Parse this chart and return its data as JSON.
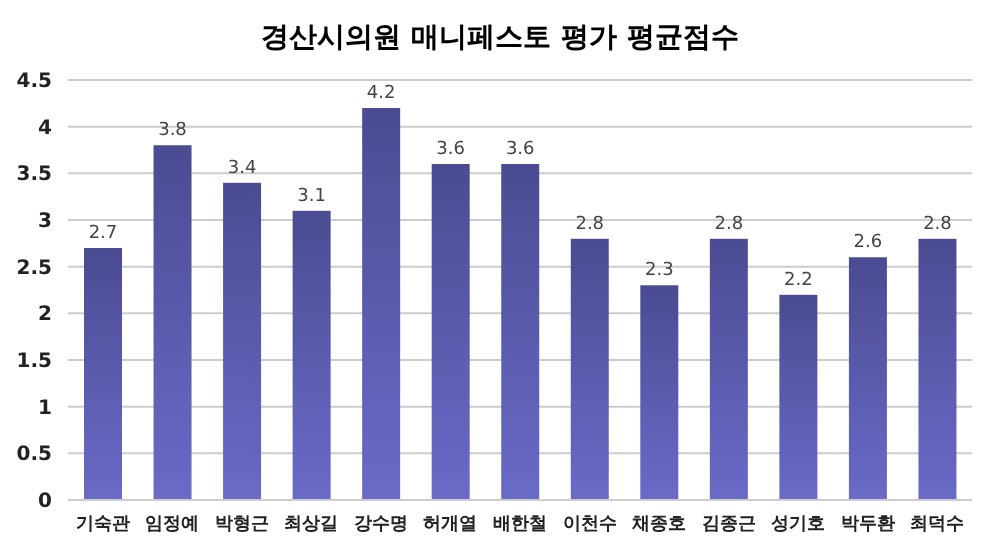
{
  "chart_data": {
    "type": "bar",
    "title": "경산시의원 매니페스토 평가 평균점수",
    "categories": [
      "기숙관",
      "임정예",
      "박형근",
      "최상길",
      "강수명",
      "허개열",
      "배한철",
      "이천수",
      "채종호",
      "김종근",
      "성기호",
      "박두환",
      "최덕수"
    ],
    "values": [
      2.7,
      3.8,
      3.4,
      3.1,
      4.2,
      3.6,
      3.6,
      2.8,
      2.3,
      2.8,
      2.2,
      2.6,
      2.8
    ],
    "color": "#6a6ac8",
    "ylim": [
      0,
      4.5
    ],
    "yticks": [
      0,
      0.5,
      1,
      1.5,
      2,
      2.5,
      3,
      3.5,
      4,
      4.5
    ],
    "grid": "y",
    "data_labels": true
  }
}
